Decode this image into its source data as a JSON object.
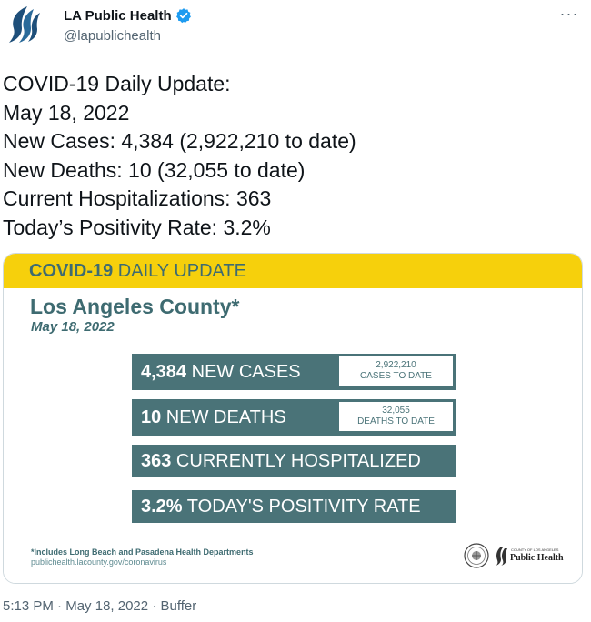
{
  "author": {
    "name": "LA Public Health",
    "handle": "@lapublichealth",
    "verified": true,
    "avatar_icon": "la-public-health-logo-icon",
    "brand_color": "#1e4f7a"
  },
  "more_icon": "more-options-icon",
  "tweet_lines": [
    "COVID-19 Daily Update:",
    "May 18, 2022",
    "New Cases: 4,384 (2,922,210 to date)",
    "New Deaths: 10 (32,055 to date)",
    "Current Hospitalizations: 363",
    "Today’s Positivity Rate: 3.2%"
  ],
  "graphic": {
    "banner_bold": "COVID-19",
    "banner_rest": " DAILY UPDATE",
    "county": "Los Angeles County*",
    "date": "May 18, 2022",
    "stats": {
      "cases": {
        "value": "4,384",
        "label": " NEW CASES",
        "total": "2,922,210",
        "total_label": "CASES TO DATE"
      },
      "deaths": {
        "value": "10",
        "label": " NEW DEATHS",
        "total": "32,055",
        "total_label": "DEATHS TO DATE"
      },
      "hospitalized": {
        "value": "363",
        "label": " CURRENTLY HOSPITALIZED"
      },
      "positivity": {
        "value": "3.2%",
        "label": " TODAY'S POSITIVITY RATE"
      }
    },
    "footnote": "*Includes Long Beach and Pasadena Health Departments",
    "url": "publichealth.lacounty.gov/coronavirus",
    "logo_top": "COUNTY OF LOS ANGELES",
    "logo_text": "Public Health",
    "colors": {
      "banner": "#f6d00c",
      "teal": "#4a7378",
      "title": "#3e6b71"
    }
  },
  "meta": {
    "time": "5:13 PM",
    "sep1": " · ",
    "date": "May 18, 2022",
    "sep2": " · ",
    "source": "Buffer"
  }
}
